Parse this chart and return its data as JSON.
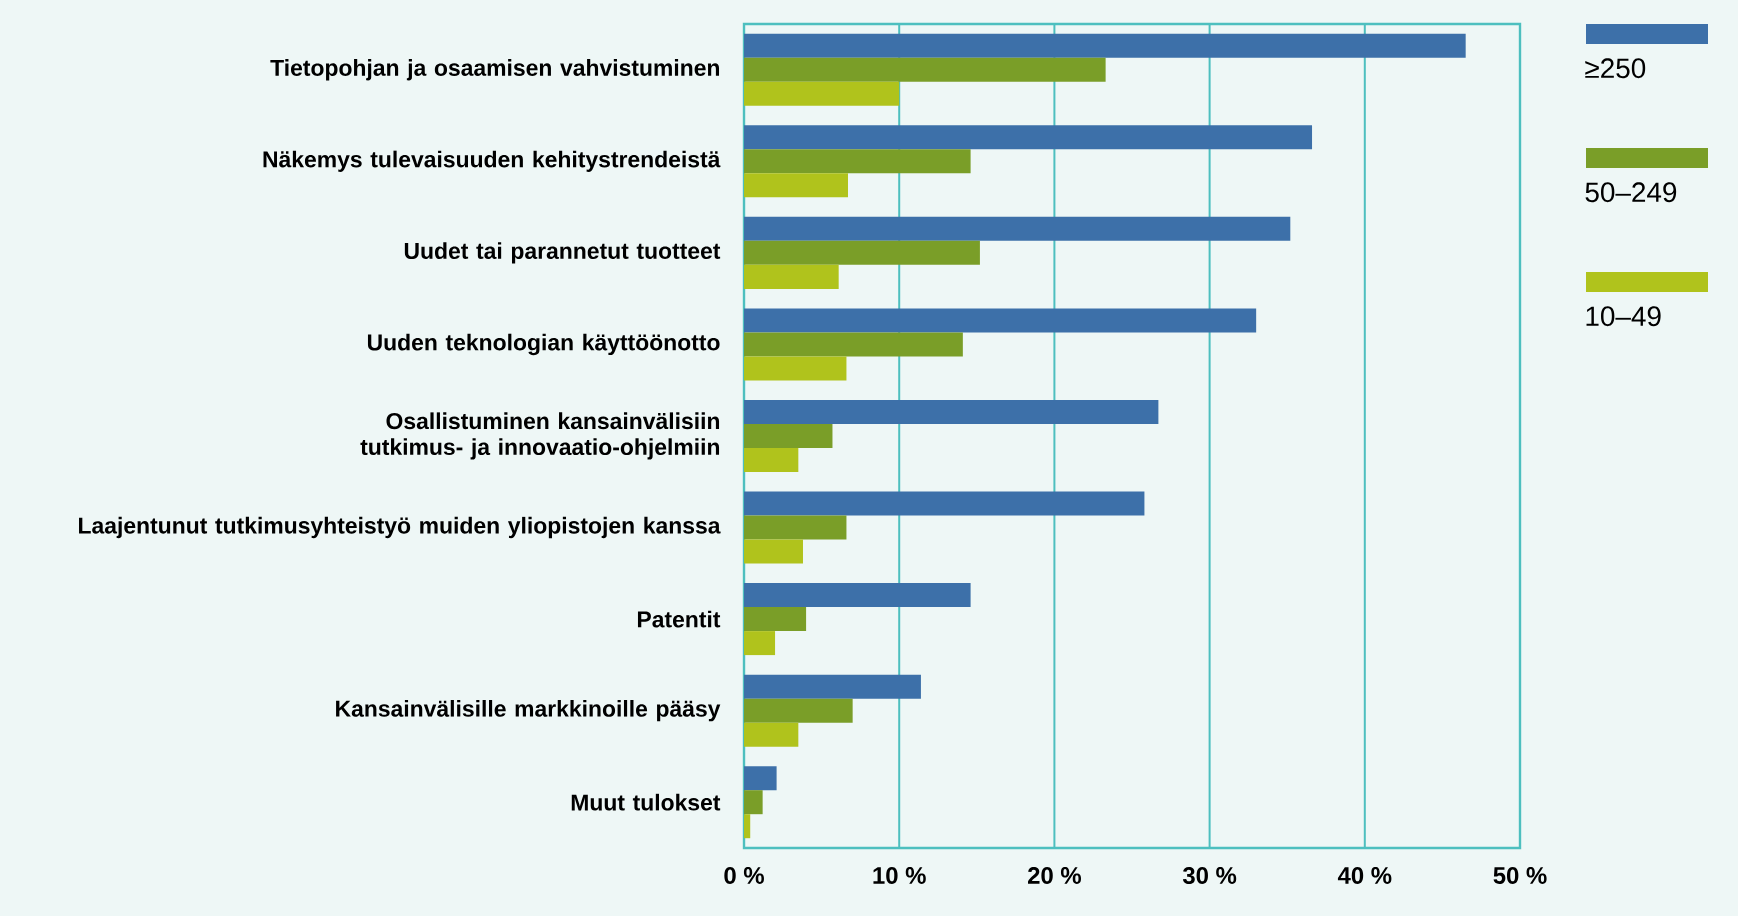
{
  "chart_data": {
    "type": "bar",
    "orientation": "horizontal",
    "categories": [
      "Tietopohjan ja osaamisen vahvistuminen",
      "Näkemys tulevaisuuden kehitystrendeistä",
      "Uudet tai parannetut tuotteet",
      "Uuden teknologian käyttöönotto",
      "Osallistuminen kansainvälisiin tutkimus- ja innovaatio-ohjelmiin",
      "Laajentunut tutkimusyhteistyö muiden yliopistojen kanssa",
      "Patentit",
      "Kansainvälisille markkinoille pääsy",
      "Muut tulokset"
    ],
    "series": [
      {
        "name": "≥250",
        "color": "#3d70a9",
        "values": [
          46.5,
          36.6,
          35.2,
          33.0,
          26.7,
          25.8,
          14.6,
          11.4,
          2.1
        ]
      },
      {
        "name": "50–249",
        "color": "#7a9e28",
        "values": [
          23.3,
          14.6,
          15.2,
          14.1,
          5.7,
          6.6,
          4.0,
          7.0,
          1.2
        ]
      },
      {
        "name": "10–49",
        "color": "#b0c31c",
        "values": [
          10.0,
          6.7,
          6.1,
          6.6,
          3.5,
          3.8,
          2.0,
          3.5,
          0.4
        ]
      }
    ],
    "xlim": [
      0,
      50
    ],
    "xticks": [
      {
        "value": 0,
        "label": "0 %"
      },
      {
        "value": 10,
        "label": "10 %"
      },
      {
        "value": 20,
        "label": "20 %"
      },
      {
        "value": 30,
        "label": "30 %"
      },
      {
        "value": 40,
        "label": "40 %"
      },
      {
        "value": 50,
        "label": "50 %"
      }
    ],
    "grid": "x",
    "legend": "right"
  }
}
